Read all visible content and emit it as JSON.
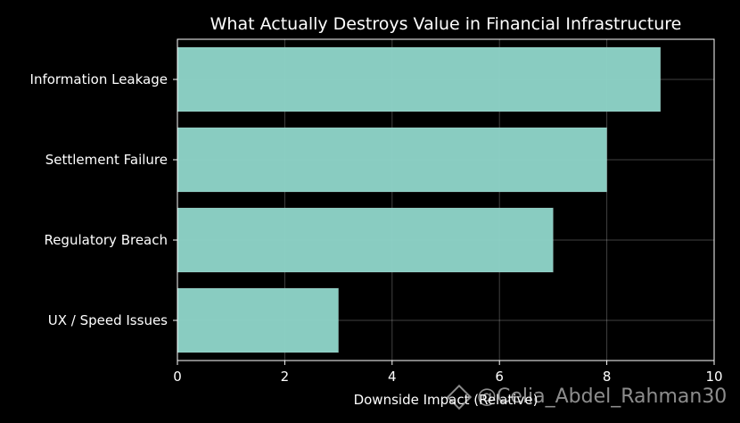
{
  "chart_data": {
    "type": "bar",
    "orientation": "horizontal",
    "title": "What Actually Destroys Value in Financial Infrastructure",
    "xlabel": "Downside Impact (Relative)",
    "ylabel": "",
    "categories": [
      "Information Leakage",
      "Settlement Failure",
      "Regulatory Breach",
      "UX / Speed Issues"
    ],
    "values": [
      9,
      8,
      7,
      3
    ],
    "xlim": [
      0,
      10
    ],
    "xticks": [
      0,
      2,
      4,
      6,
      8,
      10
    ],
    "grid": true,
    "bar_color": "#8dd3c7",
    "background": "#000000"
  },
  "watermark": {
    "icon": "binance-diamond-icon",
    "text": "@Celia_Abdel_Rahman30"
  }
}
